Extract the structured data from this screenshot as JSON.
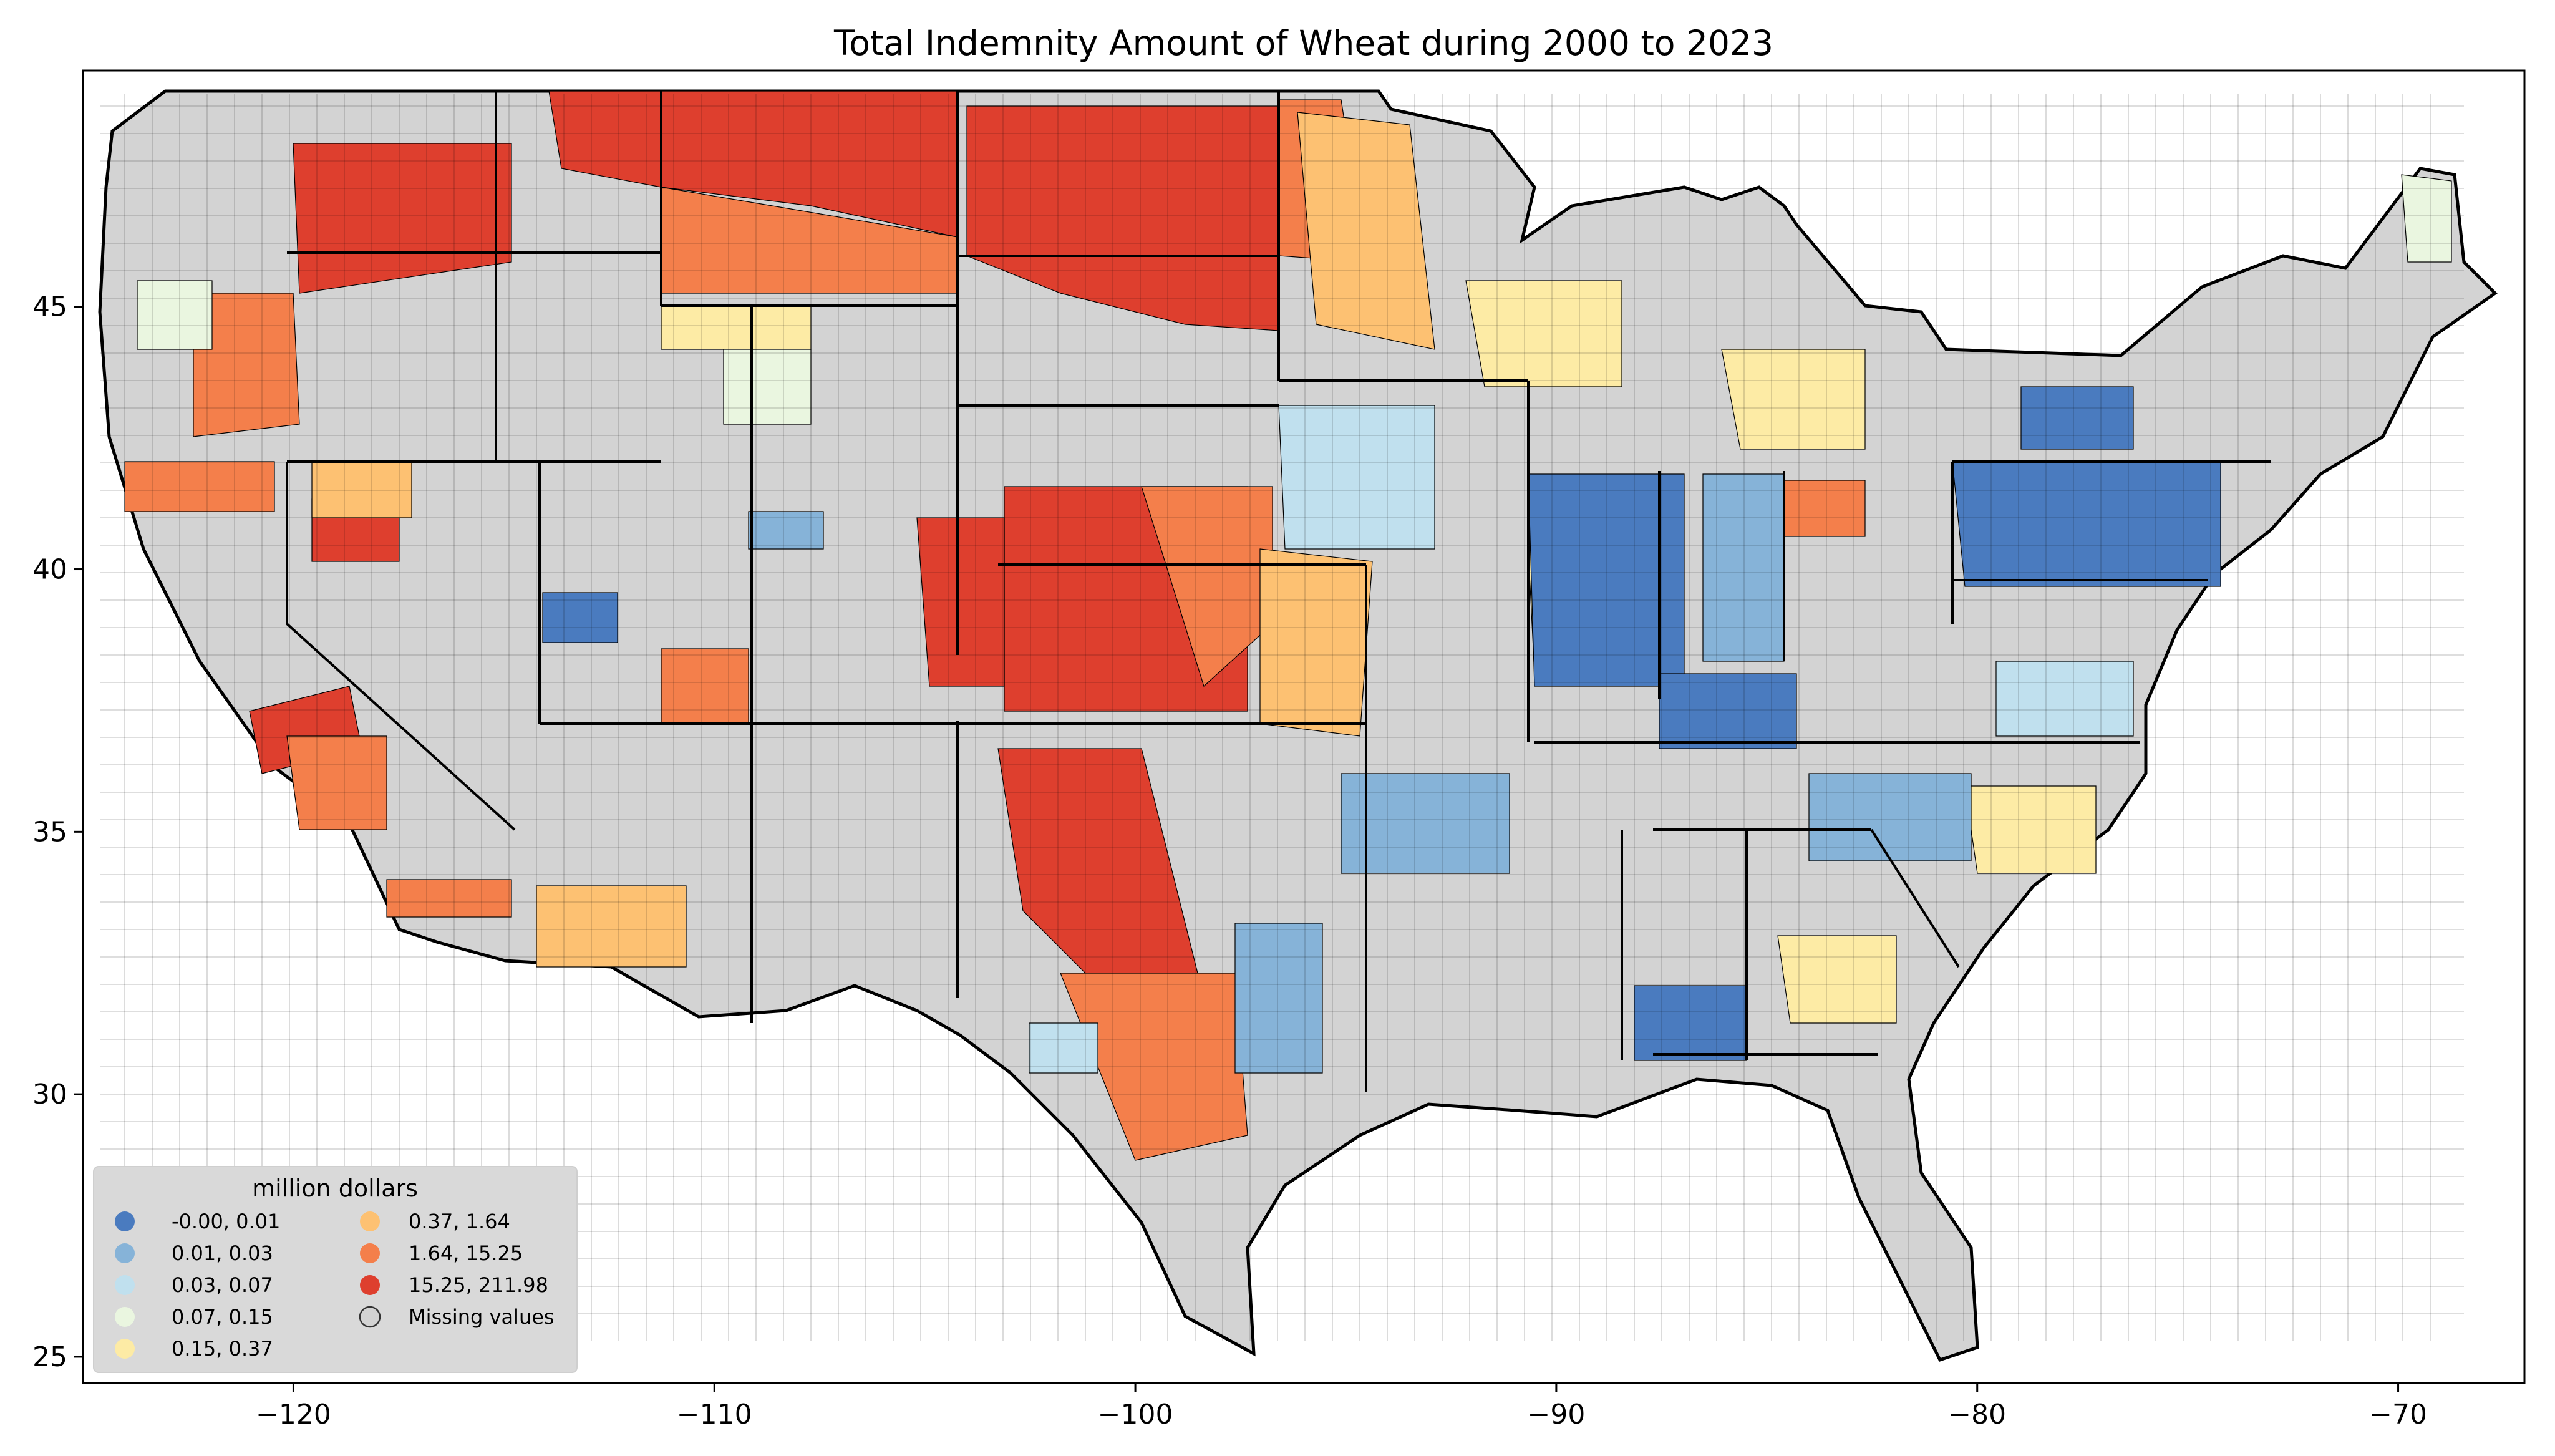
{
  "title": "Total Indemnity Amount of Wheat during 2000 to 2023",
  "axes": {
    "x_ticks": [
      "−120",
      "−110",
      "−100",
      "−90",
      "−80",
      "−70"
    ],
    "y_ticks": [
      "45",
      "40",
      "35",
      "30",
      "25"
    ],
    "x_range": [
      -125,
      -67
    ],
    "y_range": [
      24.5,
      49.5
    ]
  },
  "colors": {
    "missing": "#d3d3d3",
    "border": "#000000"
  },
  "legend": {
    "title": "million dollars",
    "items": [
      {
        "label": "-0.00,   0.01",
        "color": "#4a7bbf"
      },
      {
        "label": "0.01,   0.03",
        "color": "#86b3d8"
      },
      {
        "label": "0.03,   0.07",
        "color": "#c0e0ee"
      },
      {
        "label": "0.07,   0.15",
        "color": "#eaf6e0"
      },
      {
        "label": "0.15,   0.37",
        "color": "#fdeba5"
      },
      {
        "label": "0.37,   1.64",
        "color": "#fdc172"
      },
      {
        "label": "1.64,  15.25",
        "color": "#f47f4b"
      },
      {
        "label": "15.25, 211.98",
        "color": "#de3f2e"
      },
      {
        "label": "Missing values",
        "color": "#d3d3d3"
      }
    ]
  },
  "chart_data": {
    "type": "choropleth",
    "title": "Total Indemnity Amount of Wheat during 2000 to 2023",
    "xlim": [
      -125,
      -67
    ],
    "ylim": [
      24.5,
      49.5
    ],
    "legend_title": "million dollars",
    "bins": [
      [
        "-0.00",
        "0.01"
      ],
      [
        "0.01",
        "0.03"
      ],
      [
        "0.03",
        "0.07"
      ],
      [
        "0.07",
        "0.15"
      ],
      [
        "0.15",
        "0.37"
      ],
      [
        "0.37",
        "1.64"
      ],
      [
        "1.64",
        "15.25"
      ],
      [
        "15.25",
        "211.98"
      ]
    ],
    "legend_placement": "lower-left",
    "grid": false
  }
}
